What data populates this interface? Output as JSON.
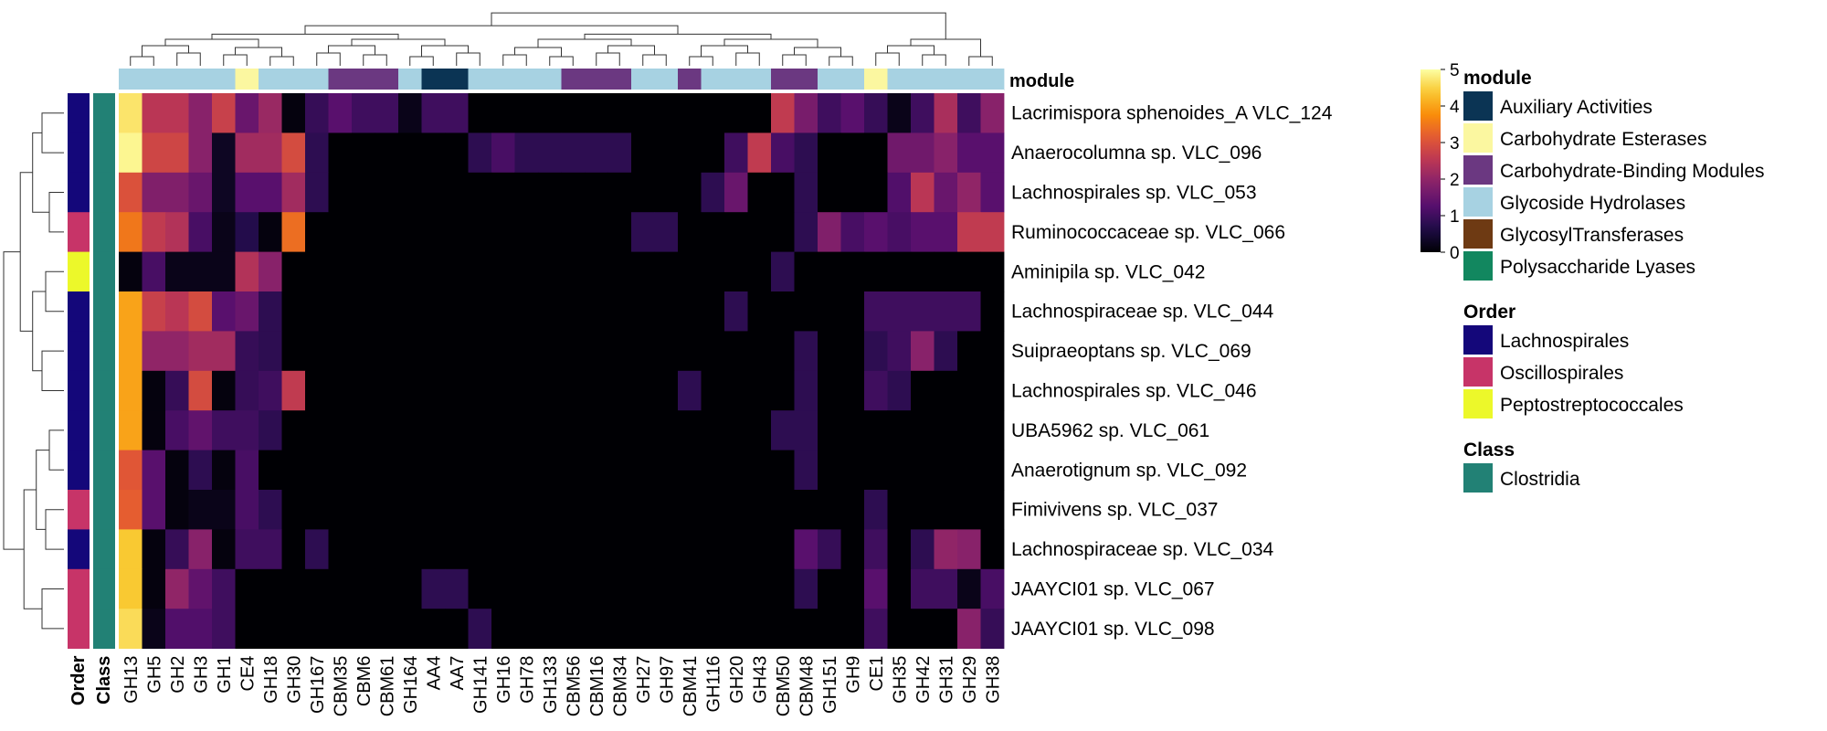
{
  "chart_data": {
    "type": "heatmap",
    "colormap": "inferno",
    "value_range": [
      0,
      5
    ],
    "colorbar_ticks": [
      0,
      1,
      2,
      3,
      4,
      5
    ],
    "columns": [
      "GH13",
      "GH5",
      "GH2",
      "GH3",
      "GH1",
      "CE4",
      "GH18",
      "GH30",
      "GH167",
      "CBM35",
      "CBM6",
      "CBM61",
      "GH164",
      "AA4",
      "AA7",
      "GH141",
      "GH16",
      "GH78",
      "GH133",
      "CBM56",
      "CBM16",
      "CBM34",
      "GH27",
      "GH97",
      "CBM41",
      "GH116",
      "GH20",
      "GH43",
      "CBM50",
      "CBM48",
      "GH151",
      "GH9",
      "CE1",
      "GH35",
      "GH42",
      "GH31",
      "GH29",
      "GH38"
    ],
    "rows": [
      "Lacrimispora sphenoides_A VLC_124",
      "Anaerocolumna sp. VLC_096",
      "Lachnospirales sp. VLC_053",
      "Ruminococcaceae sp. VLC_066",
      "Aminipila sp. VLC_042",
      "Lachnospiraceae sp. VLC_044",
      "Suipraeoptans sp. VLC_069",
      "Lachnospirales sp. VLC_046",
      "UBA5962 sp. VLC_061",
      "Anaerotignum sp. VLC_092",
      "Fimivivens sp. VLC_037",
      "Lachnospiraceae sp. VLC_034",
      "JAAYCI01 sp. VLC_067",
      "JAAYCI01 sp. VLC_098"
    ],
    "values": [
      [
        4.7,
        2.5,
        2.5,
        1.9,
        2.7,
        1.5,
        2.1,
        0.1,
        0.9,
        1.3,
        1.0,
        1.0,
        0.2,
        1.0,
        1.0,
        0,
        0,
        0,
        0,
        0,
        0,
        0,
        0,
        0,
        0,
        0,
        0,
        0,
        2.6,
        1.7,
        1.0,
        1.3,
        0.9,
        0.2,
        1.0,
        2.3,
        1.0,
        1.9
      ],
      [
        4.9,
        2.8,
        2.8,
        1.9,
        0.3,
        2.2,
        2.2,
        2.9,
        0.8,
        0,
        0,
        0,
        0,
        0,
        0,
        0.8,
        1.1,
        0.8,
        0.8,
        0.8,
        0.8,
        0.8,
        0,
        0,
        0,
        0,
        1.0,
        2.6,
        1.1,
        0.8,
        0,
        0,
        0,
        1.6,
        1.6,
        1.9,
        1.3,
        1.3
      ],
      [
        3.0,
        1.8,
        1.8,
        1.5,
        0.3,
        1.3,
        1.3,
        2.2,
        0.8,
        0,
        0,
        0,
        0,
        0,
        0,
        0,
        0,
        0,
        0,
        0,
        0,
        0,
        0,
        0,
        0,
        0.8,
        1.5,
        0,
        0,
        0.8,
        0,
        0,
        0,
        1.2,
        2.5,
        1.5,
        2.0,
        1.3
      ],
      [
        3.5,
        2.6,
        2.4,
        1.1,
        0.2,
        0.7,
        0.1,
        3.4,
        0,
        0,
        0,
        0,
        0,
        0,
        0,
        0,
        0,
        0,
        0,
        0,
        0,
        0,
        0.8,
        0.8,
        0,
        0,
        0,
        0,
        0,
        0.8,
        1.8,
        1.1,
        1.3,
        1.1,
        1.3,
        1.3,
        2.6,
        2.6
      ],
      [
        0.1,
        1.1,
        0.2,
        0.2,
        0.2,
        2.4,
        1.9,
        0,
        0,
        0,
        0,
        0,
        0,
        0,
        0,
        0,
        0,
        0,
        0,
        0,
        0,
        0,
        0,
        0,
        0,
        0,
        0,
        0,
        0.8,
        0,
        0,
        0,
        0,
        0,
        0,
        0,
        0,
        0
      ],
      [
        4.0,
        2.7,
        2.5,
        2.9,
        1.3,
        1.5,
        0.8,
        0,
        0,
        0,
        0,
        0,
        0,
        0,
        0,
        0,
        0,
        0,
        0,
        0,
        0,
        0,
        0,
        0,
        0,
        0,
        0.8,
        0,
        0,
        0,
        0,
        0,
        1.0,
        1.0,
        1.0,
        1.0,
        1.0,
        0
      ],
      [
        4.0,
        2.0,
        2.0,
        2.2,
        2.2,
        0.9,
        0.8,
        0,
        0,
        0,
        0,
        0,
        0,
        0,
        0,
        0,
        0,
        0,
        0,
        0,
        0,
        0,
        0,
        0,
        0,
        0,
        0,
        0,
        0,
        0.8,
        0,
        0,
        0.8,
        1.0,
        1.9,
        0.8,
        0,
        0
      ],
      [
        4.0,
        0.1,
        0.9,
        2.9,
        0.1,
        0.9,
        1.0,
        2.6,
        0,
        0,
        0,
        0,
        0,
        0,
        0,
        0,
        0,
        0,
        0,
        0,
        0,
        0,
        0,
        0,
        0.8,
        0,
        0,
        0,
        0,
        0.8,
        0,
        0,
        1.0,
        0.8,
        0,
        0,
        0,
        0
      ],
      [
        4.0,
        0.1,
        1.1,
        1.4,
        1.0,
        1.0,
        0.8,
        0,
        0,
        0,
        0,
        0,
        0,
        0,
        0,
        0,
        0,
        0,
        0,
        0,
        0,
        0,
        0,
        0,
        0,
        0,
        0,
        0,
        0.8,
        0.8,
        0,
        0,
        0,
        0,
        0,
        0,
        0,
        0
      ],
      [
        3.1,
        1.3,
        0.1,
        0.8,
        0.1,
        1.1,
        0,
        0,
        0,
        0,
        0,
        0,
        0,
        0,
        0,
        0,
        0,
        0,
        0,
        0,
        0,
        0,
        0,
        0,
        0,
        0,
        0,
        0,
        0,
        0.8,
        0,
        0,
        0,
        0,
        0,
        0,
        0,
        0
      ],
      [
        3.2,
        1.3,
        0.1,
        0.2,
        0.2,
        1.1,
        0.8,
        0,
        0,
        0,
        0,
        0,
        0,
        0,
        0,
        0,
        0,
        0,
        0,
        0,
        0,
        0,
        0,
        0,
        0,
        0,
        0,
        0,
        0,
        0,
        0,
        0,
        0.8,
        0,
        0,
        0,
        0,
        0
      ],
      [
        4.4,
        0.1,
        0.9,
        1.9,
        0.1,
        1.0,
        1.0,
        0,
        0.8,
        0,
        0,
        0,
        0,
        0,
        0,
        0,
        0,
        0,
        0,
        0,
        0,
        0,
        0,
        0,
        0,
        0,
        0,
        0,
        0,
        1.3,
        0.9,
        0,
        1.0,
        0,
        0.8,
        2.0,
        1.9,
        0
      ],
      [
        4.4,
        0.1,
        2.0,
        1.4,
        1.0,
        0,
        0,
        0,
        0,
        0,
        0,
        0,
        0,
        0.8,
        0.8,
        0,
        0,
        0,
        0,
        0,
        0,
        0,
        0,
        0,
        0,
        0,
        0,
        0,
        0,
        0.8,
        0,
        0,
        1.3,
        0,
        1.0,
        1.0,
        0.2,
        1.1
      ],
      [
        4.6,
        0.2,
        1.2,
        1.2,
        1.0,
        0,
        0,
        0,
        0,
        0,
        0,
        0,
        0,
        0,
        0,
        0.8,
        0,
        0,
        0,
        0,
        0,
        0,
        0,
        0,
        0,
        0,
        0,
        0,
        0,
        0,
        0,
        0,
        1.0,
        0,
        0,
        0,
        1.9,
        0.9
      ]
    ],
    "column_module": [
      "Glycoside Hydrolases",
      "Glycoside Hydrolases",
      "Glycoside Hydrolases",
      "Glycoside Hydrolases",
      "Glycoside Hydrolases",
      "Carbohydrate Esterases",
      "Glycoside Hydrolases",
      "Glycoside Hydrolases",
      "Glycoside Hydrolases",
      "Carbohydrate-Binding Modules",
      "Carbohydrate-Binding Modules",
      "Carbohydrate-Binding Modules",
      "Glycoside Hydrolases",
      "Auxiliary Activities",
      "Auxiliary Activities",
      "Glycoside Hydrolases",
      "Glycoside Hydrolases",
      "Glycoside Hydrolases",
      "Glycoside Hydrolases",
      "Carbohydrate-Binding Modules",
      "Carbohydrate-Binding Modules",
      "Carbohydrate-Binding Modules",
      "Glycoside Hydrolases",
      "Glycoside Hydrolases",
      "Carbohydrate-Binding Modules",
      "Glycoside Hydrolases",
      "Glycoside Hydrolases",
      "Glycoside Hydrolases",
      "Carbohydrate-Binding Modules",
      "Carbohydrate-Binding Modules",
      "Glycoside Hydrolases",
      "Glycoside Hydrolases",
      "Carbohydrate Esterases",
      "Glycoside Hydrolases",
      "Glycoside Hydrolases",
      "Glycoside Hydrolases",
      "Glycoside Hydrolases",
      "Glycoside Hydrolases"
    ],
    "row_order": [
      "Lachnospirales",
      "Lachnospirales",
      "Lachnospirales",
      "Oscillospirales",
      "Peptostreptococcales",
      "Lachnospirales",
      "Lachnospirales",
      "Lachnospirales",
      "Lachnospirales",
      "Lachnospirales",
      "Oscillospirales",
      "Lachnospirales",
      "Oscillospirales",
      "Oscillospirales"
    ],
    "row_class": [
      "Clostridia",
      "Clostridia",
      "Clostridia",
      "Clostridia",
      "Clostridia",
      "Clostridia",
      "Clostridia",
      "Clostridia",
      "Clostridia",
      "Clostridia",
      "Clostridia",
      "Clostridia",
      "Clostridia",
      "Clostridia"
    ],
    "annotation_bar_labels": {
      "module": "module",
      "order": "Order",
      "class": "Class"
    },
    "legends": [
      {
        "title": "module",
        "items": [
          {
            "label": "Auxiliary Activities",
            "color": "#0b3454"
          },
          {
            "label": "Carbohydrate Esterases",
            "color": "#fbf7a0"
          },
          {
            "label": "Carbohydrate-Binding Modules",
            "color": "#6b3881"
          },
          {
            "label": "Glycoside Hydrolases",
            "color": "#a7d2e2"
          },
          {
            "label": "GlycosylTransferases",
            "color": "#6e3a13"
          },
          {
            "label": "Polysaccharide Lyases",
            "color": "#12875f"
          }
        ]
      },
      {
        "title": "Order",
        "items": [
          {
            "label": "Lachnospirales",
            "color": "#14077a"
          },
          {
            "label": "Oscillospirales",
            "color": "#c73468"
          },
          {
            "label": "Peptostreptococcales",
            "color": "#ecf82a"
          }
        ]
      },
      {
        "title": "Class",
        "items": [
          {
            "label": "Clostridia",
            "color": "#228175"
          }
        ]
      }
    ],
    "column_dendrogram": true,
    "row_dendrogram": true
  }
}
